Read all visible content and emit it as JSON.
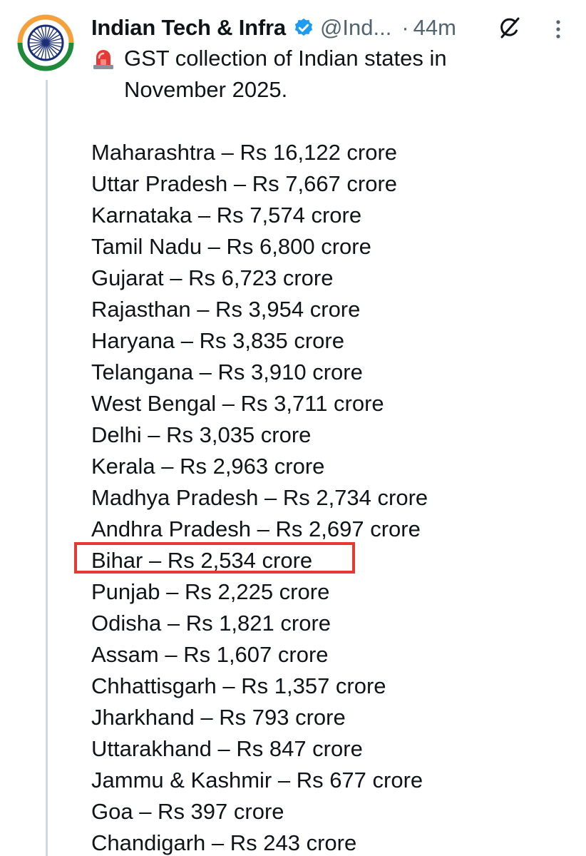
{
  "tweet": {
    "author_name": "Indian Tech & Infra",
    "handle": "@Ind...",
    "separator": "·",
    "time": "44m",
    "intro_text": "GST collection of Indian states in November 2025.",
    "emoji_icon": "siren-icon",
    "list": [
      "Maharashtra – Rs 16,122 crore",
      "Uttar Pradesh – Rs 7,667 crore",
      "Karnataka – Rs 7,574 crore",
      "Tamil Nadu – Rs 6,800 crore",
      "Gujarat – Rs 6,723 crore",
      "Rajasthan – Rs 3,954 crore",
      "Haryana – Rs 3,835 crore",
      "Telangana – Rs 3,910 crore",
      "West Bengal – Rs 3,711 crore",
      "Delhi – Rs 3,035 crore",
      "Kerala – Rs 2,963 crore",
      "Madhya Pradesh – Rs 2,734 crore",
      "Andhra Pradesh – Rs 2,697 crore",
      "Bihar – Rs 2,534 crore",
      "Punjab – Rs 2,225 crore",
      "Odisha – Rs 1,821 crore",
      "Assam – Rs 1,607 crore",
      "Chhattisgarh – Rs 1,357 crore",
      "Jharkhand – Rs 793 crore",
      "Uttarakhand – Rs 847 crore",
      "Jammu & Kashmir – Rs 677 crore",
      "Goa – Rs 397 crore",
      "Chandigarh – Rs 243 crore"
    ],
    "highlighted_item": "Bihar – Rs 2,534 crore"
  },
  "icons": {
    "avatar": "indian-flag-chakra-avatar",
    "verified": "verified-badge-icon",
    "grok": "grok-icon",
    "more": "more-vertical-icon"
  },
  "colors": {
    "text": "#0f1419",
    "secondary": "#536471",
    "verified_blue": "#1d9bf0",
    "highlight_red": "#e53935",
    "saffron": "#f4a13b",
    "green": "#1e8a3a",
    "chakra_navy": "#1a2e78",
    "thread_line": "#cfd9de"
  }
}
